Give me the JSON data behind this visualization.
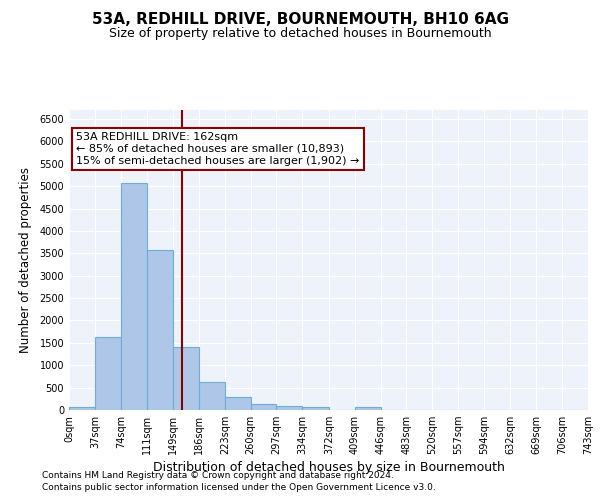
{
  "title": "53A, REDHILL DRIVE, BOURNEMOUTH, BH10 6AG",
  "subtitle": "Size of property relative to detached houses in Bournemouth",
  "xlabel": "Distribution of detached houses by size in Bournemouth",
  "ylabel": "Number of detached properties",
  "footnote1": "Contains HM Land Registry data © Crown copyright and database right 2024.",
  "footnote2": "Contains public sector information licensed under the Open Government Licence v3.0.",
  "annotation_title": "53A REDHILL DRIVE: 162sqm",
  "annotation_line1": "← 85% of detached houses are smaller (10,893)",
  "annotation_line2": "15% of semi-detached houses are larger (1,902) →",
  "bar_edges": [
    0,
    37,
    74,
    111,
    149,
    186,
    223,
    260,
    297,
    334,
    372,
    409,
    446,
    483,
    520,
    557,
    594,
    632,
    669,
    706,
    743
  ],
  "bar_heights": [
    75,
    1625,
    5060,
    3570,
    1400,
    620,
    290,
    140,
    100,
    75,
    0,
    70,
    0,
    0,
    0,
    0,
    0,
    0,
    0,
    0
  ],
  "bar_color": "#aec6e8",
  "bar_edge_color": "#6baed6",
  "vline_x": 162,
  "vline_color": "#8b0000",
  "annotation_box_color": "#8b0000",
  "background_color": "#eef2fa",
  "ylim": [
    0,
    6700
  ],
  "xlim": [
    0,
    743
  ],
  "yticks": [
    0,
    500,
    1000,
    1500,
    2000,
    2500,
    3000,
    3500,
    4000,
    4500,
    5000,
    5500,
    6000,
    6500
  ],
  "tick_labels": [
    "0sqm",
    "37sqm",
    "74sqm",
    "111sqm",
    "149sqm",
    "186sqm",
    "223sqm",
    "260sqm",
    "297sqm",
    "334sqm",
    "372sqm",
    "409sqm",
    "446sqm",
    "483sqm",
    "520sqm",
    "557sqm",
    "594sqm",
    "632sqm",
    "669sqm",
    "706sqm",
    "743sqm"
  ],
  "title_fontsize": 11,
  "subtitle_fontsize": 9,
  "ylabel_fontsize": 8.5,
  "xlabel_fontsize": 9,
  "tick_fontsize": 7,
  "footnote_fontsize": 6.5,
  "annotation_fontsize": 8
}
